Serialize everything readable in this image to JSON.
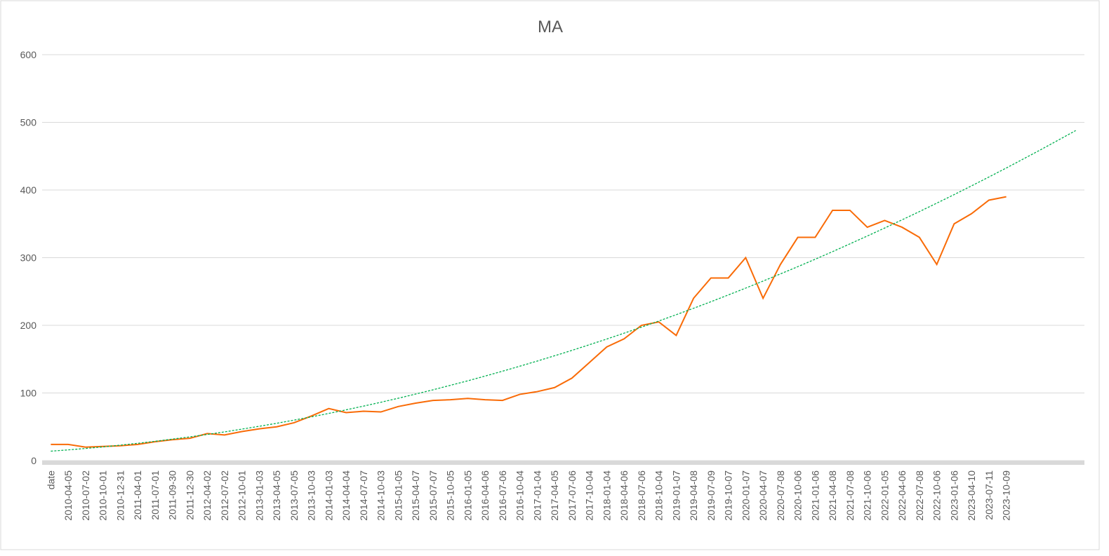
{
  "chart_data": {
    "type": "line",
    "title": "MA",
    "categories": [
      "date",
      "2010-04-05",
      "2010-07-02",
      "2010-10-01",
      "2010-12-31",
      "2011-04-01",
      "2011-07-01",
      "2011-09-30",
      "2011-12-30",
      "2012-04-02",
      "2012-07-02",
      "2012-10-01",
      "2013-01-03",
      "2013-04-05",
      "2013-07-05",
      "2013-10-03",
      "2014-01-03",
      "2014-04-04",
      "2014-07-07",
      "2014-10-03",
      "2015-01-05",
      "2015-04-07",
      "2015-07-07",
      "2015-10-05",
      "2016-01-05",
      "2016-04-06",
      "2016-07-06",
      "2016-10-04",
      "2017-01-04",
      "2017-04-05",
      "2017-07-06",
      "2017-10-04",
      "2018-01-04",
      "2018-04-06",
      "2018-07-06",
      "2018-10-04",
      "2019-01-07",
      "2019-04-08",
      "2019-07-09",
      "2019-10-07",
      "2020-01-07",
      "2020-04-07",
      "2020-07-08",
      "2020-10-06",
      "2021-01-06",
      "2021-04-08",
      "2021-07-08",
      "2021-10-06",
      "2022-01-05",
      "2022-04-06",
      "2022-07-08",
      "2022-10-06",
      "2023-01-06",
      "2023-04-10",
      "2023-07-11",
      "2023-10-09",
      null,
      null,
      null,
      null
    ],
    "series": [
      {
        "color": "#f96b07",
        "values": [
          24,
          24,
          20,
          21,
          22,
          24,
          28,
          31,
          33,
          40,
          38,
          43,
          47,
          50,
          56,
          66,
          77,
          71,
          73,
          72,
          80,
          85,
          89,
          90,
          92,
          90,
          89,
          98,
          102,
          108,
          122,
          145,
          168,
          180,
          200,
          205,
          185,
          240,
          270,
          270,
          300,
          240,
          290,
          330,
          330,
          370,
          370,
          345,
          355,
          345,
          330,
          290,
          350,
          365,
          385,
          390,
          null,
          null,
          null,
          null
        ]
      },
      {
        "color": "#00b050",
        "dashed": true,
        "values": [
          14,
          15.9,
          18.0,
          20.3,
          22.9,
          25.6,
          28.6,
          31.8,
          35.1,
          38.7,
          42.5,
          46.6,
          50.8,
          55.2,
          59.9,
          64.7,
          69.8,
          75.1,
          80.6,
          86.3,
          92.2,
          98.4,
          104.7,
          111.3,
          118.0,
          125.0,
          132.2,
          139.6,
          147.2,
          155.0,
          163.0,
          171.3,
          179.7,
          188.4,
          197.3,
          206.4,
          215.7,
          225.2,
          234.9,
          244.9,
          255.0,
          265.4,
          276.0,
          286.7,
          297.7,
          308.9,
          320.4,
          332.0,
          343.8,
          355.9,
          368.1,
          380.6,
          393.2,
          406.1,
          419.2,
          432.5,
          446.1,
          459.8,
          473.8,
          487.9
        ]
      }
    ],
    "ylim": [
      0,
      600
    ],
    "yticks": [
      0,
      100,
      200,
      300,
      400,
      500,
      600
    ],
    "grid": true
  }
}
